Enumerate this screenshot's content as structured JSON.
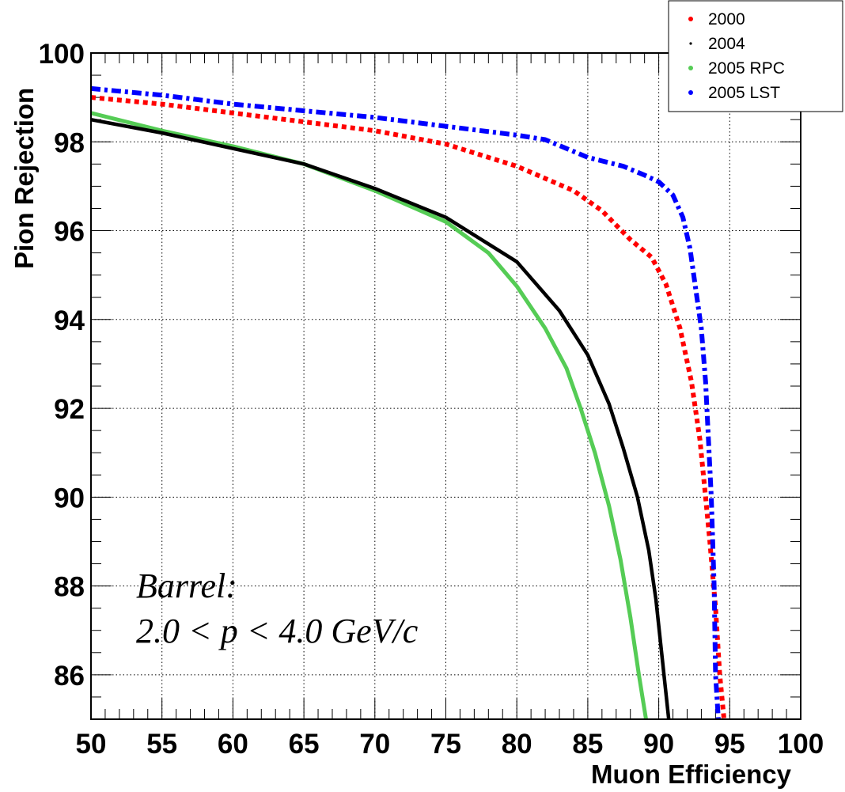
{
  "chart_data": {
    "type": "line",
    "xlabel": "Muon Efficiency",
    "ylabel": "Pion Rejection",
    "xlim": [
      50,
      100
    ],
    "ylim": [
      85,
      100
    ],
    "xticks": [
      "50",
      "55",
      "60",
      "65",
      "70",
      "75",
      "80",
      "85",
      "90",
      "95",
      "100"
    ],
    "yticks": [
      "86",
      "88",
      "90",
      "92",
      "94",
      "96",
      "98",
      "100"
    ],
    "grid": true,
    "legend_position": "top-right",
    "annotations": [
      "Barrel:",
      "2.0 < p < 4.0 GeV/c"
    ],
    "series": [
      {
        "name": "2000",
        "color": "#ff0000",
        "style": "dotted",
        "points": [
          [
            50,
            99.0
          ],
          [
            55,
            98.85
          ],
          [
            60,
            98.65
          ],
          [
            65,
            98.45
          ],
          [
            70,
            98.25
          ],
          [
            75,
            97.95
          ],
          [
            80,
            97.45
          ],
          [
            84,
            96.9
          ],
          [
            86,
            96.45
          ],
          [
            88,
            95.8
          ],
          [
            89.5,
            95.4
          ],
          [
            90.5,
            94.8
          ],
          [
            91.5,
            93.8
          ],
          [
            92.3,
            92.6
          ],
          [
            92.9,
            91.3
          ],
          [
            93.3,
            90.0
          ],
          [
            93.6,
            89.0
          ],
          [
            94.0,
            87.5
          ],
          [
            94.3,
            86.0
          ],
          [
            94.6,
            85.0
          ]
        ]
      },
      {
        "name": "2004",
        "color": "#000000",
        "style": "solid",
        "points": [
          [
            50,
            98.5
          ],
          [
            55,
            98.2
          ],
          [
            60,
            97.85
          ],
          [
            65,
            97.5
          ],
          [
            70,
            96.95
          ],
          [
            75,
            96.3
          ],
          [
            80,
            95.3
          ],
          [
            83,
            94.2
          ],
          [
            85,
            93.2
          ],
          [
            86.5,
            92.1
          ],
          [
            87.5,
            91.1
          ],
          [
            88.5,
            90.0
          ],
          [
            89.3,
            88.8
          ],
          [
            89.8,
            87.7
          ],
          [
            90.2,
            86.5
          ],
          [
            90.7,
            85.0
          ]
        ]
      },
      {
        "name": "2005 RPC",
        "color": "#55cc55",
        "style": "solid",
        "points": [
          [
            50,
            98.65
          ],
          [
            55,
            98.25
          ],
          [
            60,
            97.9
          ],
          [
            65,
            97.5
          ],
          [
            70,
            96.9
          ],
          [
            75,
            96.2
          ],
          [
            78,
            95.5
          ],
          [
            80,
            94.75
          ],
          [
            82,
            93.8
          ],
          [
            83.5,
            92.9
          ],
          [
            84.5,
            92.0
          ],
          [
            85.5,
            91.0
          ],
          [
            86.5,
            89.8
          ],
          [
            87.3,
            88.6
          ],
          [
            88.0,
            87.3
          ],
          [
            88.6,
            86.0
          ],
          [
            89.1,
            85.0
          ]
        ]
      },
      {
        "name": "2005 LST",
        "color": "#0000ff",
        "style": "dash-dot",
        "points": [
          [
            50,
            99.2
          ],
          [
            55,
            99.05
          ],
          [
            60,
            98.85
          ],
          [
            65,
            98.7
          ],
          [
            70,
            98.55
          ],
          [
            75,
            98.35
          ],
          [
            80,
            98.15
          ],
          [
            82,
            98.05
          ],
          [
            85,
            97.65
          ],
          [
            87.5,
            97.45
          ],
          [
            89,
            97.25
          ],
          [
            90,
            97.1
          ],
          [
            91,
            96.8
          ],
          [
            91.7,
            96.3
          ],
          [
            92.2,
            95.6
          ],
          [
            92.6,
            94.7
          ],
          [
            93.0,
            93.8
          ],
          [
            93.3,
            92.6
          ],
          [
            93.5,
            91.3
          ],
          [
            93.7,
            90.0
          ],
          [
            93.9,
            88.0
          ],
          [
            94.0,
            86.0
          ],
          [
            94.2,
            85.0
          ]
        ]
      }
    ]
  }
}
